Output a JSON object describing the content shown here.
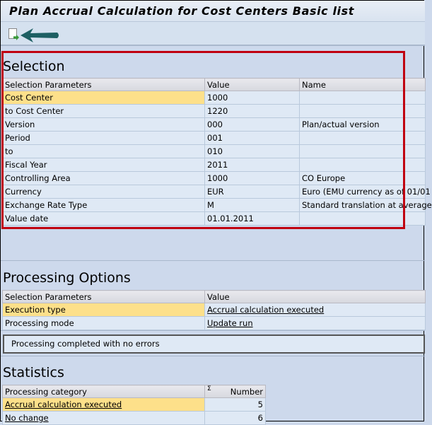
{
  "title": "Plan Accrual Calculation for Cost Centers Basic list",
  "toolbar": {
    "icon": "document-export-icon"
  },
  "selection": {
    "heading": "Selection",
    "headers": [
      "Selection Parameters",
      "Value",
      "Name"
    ],
    "rows": [
      [
        "Cost Center",
        "1000",
        ""
      ],
      [
        "to Cost Center",
        "1220",
        ""
      ],
      [
        "Version",
        "000",
        "Plan/actual version"
      ],
      [
        "Period",
        "001",
        ""
      ],
      [
        "to",
        "010",
        ""
      ],
      [
        "Fiscal Year",
        "2011",
        ""
      ],
      [
        "Controlling Area",
        "1000",
        "CO Europe"
      ],
      [
        "Currency",
        "EUR",
        "Euro (EMU currency as of 01/01"
      ],
      [
        "Exchange Rate Type",
        "M",
        "Standard translation at average"
      ],
      [
        "Value date",
        "01.01.2011",
        ""
      ]
    ]
  },
  "processing": {
    "heading": "Processing Options",
    "headers": [
      "Selection Parameters",
      "Value"
    ],
    "rows": [
      [
        "Execution type",
        "Accrual calculation executed"
      ],
      [
        "Processing mode",
        "Update run"
      ]
    ]
  },
  "message": "Processing completed with no errors",
  "statistics": {
    "heading": "Statistics",
    "headers": [
      "Processing category",
      "Number"
    ],
    "sigma": "Σ",
    "rows": [
      [
        "Accrual calculation executed",
        "5"
      ],
      [
        "No change",
        "6"
      ]
    ]
  },
  "colors": {
    "highlight": "#fde08a",
    "annotation_box": "#c00010",
    "arrow": "#1d5f63"
  }
}
